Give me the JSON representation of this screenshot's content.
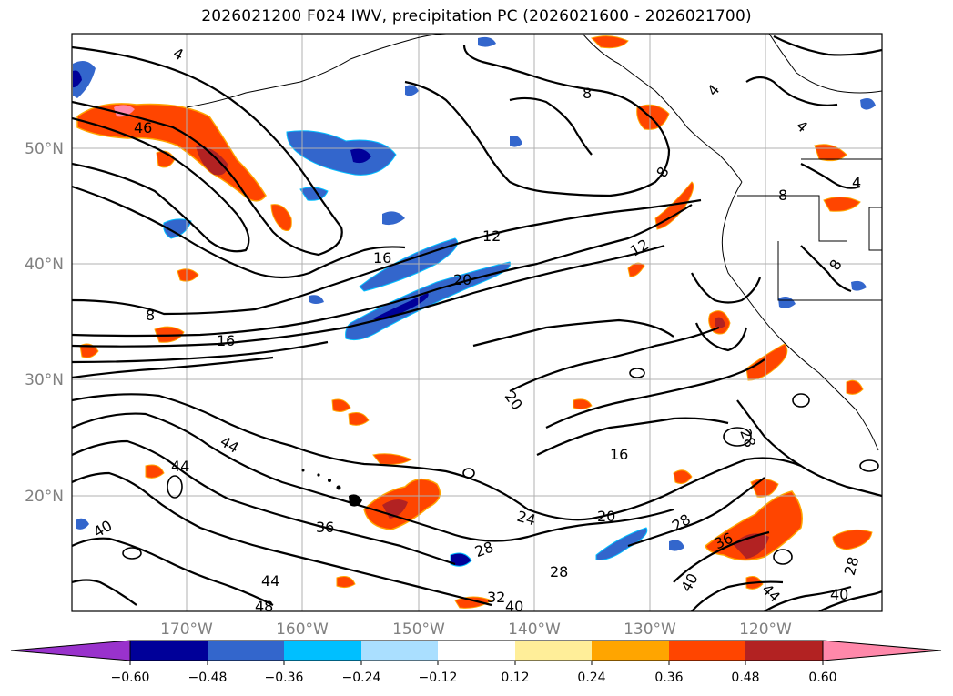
{
  "title": "2026021200 F024 IWV, precipitation PC (2026021600 - 2026021700)",
  "map": {
    "lat_labels": [
      "50°N",
      "40°N",
      "30°N",
      "20°N"
    ],
    "lon_labels": [
      "170°W",
      "160°W",
      "150°W",
      "140°W",
      "130°W",
      "120°W"
    ],
    "lat_values": [
      50,
      40,
      30,
      20
    ],
    "lon_values": [
      -170,
      -160,
      -150,
      -140,
      -130,
      -120
    ],
    "lat_range": [
      10,
      60
    ],
    "lon_range": [
      -180,
      -110
    ],
    "grid": true,
    "contour_variable": "IWV",
    "contour_labels": [
      "4",
      "46",
      "16",
      "8",
      "12",
      "20",
      "16",
      "20",
      "44",
      "44",
      "40",
      "36",
      "24",
      "28",
      "28",
      "20",
      "16",
      "28",
      "12",
      "8",
      "4",
      "8",
      "8",
      "8",
      "4",
      "4",
      "28",
      "40",
      "44",
      "40",
      "36",
      "32",
      "40",
      "44",
      "48",
      "28"
    ],
    "shaded_variable": "precipitation PC"
  },
  "colorbar": {
    "ticks": [
      "−0.60",
      "−0.48",
      "−0.36",
      "−0.24",
      "−0.12",
      "0.12",
      "0.24",
      "0.36",
      "0.48",
      "0.60"
    ],
    "colors": [
      "#9932cc",
      "#000099",
      "#3366cc",
      "#00bfff",
      "#aadfff",
      "#ffffff",
      "#ffee99",
      "#ffa500",
      "#ff4500",
      "#b22222",
      "#ff88aa"
    ]
  }
}
